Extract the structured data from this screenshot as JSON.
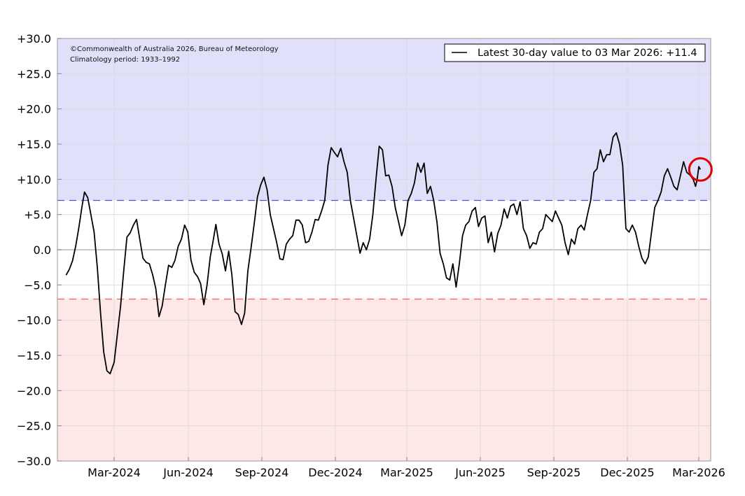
{
  "chart_data": {
    "type": "line",
    "title": "",
    "xlabel": "",
    "ylabel": "",
    "ylim": [
      -30,
      30
    ],
    "grid": true,
    "legend_position": "upper right",
    "annotations": [
      "©Commonwealth of Australia 2026, Bureau of Meteorology",
      "Climatology period: 1933–1992"
    ],
    "legend": [
      "Latest 30-day value to 03 Mar 2026: +11.4"
    ],
    "y_ticks": [
      "+30.0",
      "+25.0",
      "+20.0",
      "+15.0",
      "+10.0",
      "+5.0",
      "0.0",
      "−5.0",
      "−10.0",
      "−15.0",
      "−20.0",
      "−25.0",
      "−30.0"
    ],
    "x_ticks": [
      "Mar-2024",
      "Jun-2024",
      "Sep-2024",
      "Dec-2024",
      "Mar-2025",
      "Jun-2025",
      "Sep-2025",
      "Dec-2025",
      "Mar-2026"
    ],
    "thresholds": {
      "upper": 7.0,
      "lower": -7.0
    },
    "shading": {
      "above_upper": "#e0e0fb",
      "below_lower": "#fde7e7"
    },
    "highlight": {
      "label": "latest value marker",
      "value": 11.4,
      "color": "#e00000"
    },
    "series": [
      {
        "name": "30-day value",
        "color": "#000000",
        "points": [
          {
            "date": "2024-01-01",
            "value": -3.6
          },
          {
            "date": "2024-01-05",
            "value": -2.8
          },
          {
            "date": "2024-01-09",
            "value": -1.6
          },
          {
            "date": "2024-01-13",
            "value": 0.5
          },
          {
            "date": "2024-01-17",
            "value": 3.2
          },
          {
            "date": "2024-01-21",
            "value": 6.2
          },
          {
            "date": "2024-01-24",
            "value": 8.2
          },
          {
            "date": "2024-01-28",
            "value": 7.4
          },
          {
            "date": "2024-02-01",
            "value": 5.0
          },
          {
            "date": "2024-02-05",
            "value": 2.5
          },
          {
            "date": "2024-02-09",
            "value": -2.5
          },
          {
            "date": "2024-02-13",
            "value": -9.0
          },
          {
            "date": "2024-02-17",
            "value": -14.5
          },
          {
            "date": "2024-02-21",
            "value": -17.2
          },
          {
            "date": "2024-02-25",
            "value": -17.6
          },
          {
            "date": "2024-03-01",
            "value": -16.0
          },
          {
            "date": "2024-03-05",
            "value": -12.0
          },
          {
            "date": "2024-03-09",
            "value": -8.0
          },
          {
            "date": "2024-03-13",
            "value": -3.0
          },
          {
            "date": "2024-03-17",
            "value": 1.8
          },
          {
            "date": "2024-03-21",
            "value": 2.4
          },
          {
            "date": "2024-03-25",
            "value": 3.5
          },
          {
            "date": "2024-03-29",
            "value": 4.3
          },
          {
            "date": "2024-04-02",
            "value": 1.5
          },
          {
            "date": "2024-04-06",
            "value": -1.2
          },
          {
            "date": "2024-04-10",
            "value": -1.8
          },
          {
            "date": "2024-04-14",
            "value": -2.0
          },
          {
            "date": "2024-04-18",
            "value": -3.5
          },
          {
            "date": "2024-04-22",
            "value": -5.5
          },
          {
            "date": "2024-04-26",
            "value": -9.5
          },
          {
            "date": "2024-04-30",
            "value": -8.0
          },
          {
            "date": "2024-05-04",
            "value": -5.0
          },
          {
            "date": "2024-05-08",
            "value": -2.2
          },
          {
            "date": "2024-05-12",
            "value": -2.5
          },
          {
            "date": "2024-05-16",
            "value": -1.5
          },
          {
            "date": "2024-05-20",
            "value": 0.5
          },
          {
            "date": "2024-05-24",
            "value": 1.5
          },
          {
            "date": "2024-05-28",
            "value": 3.5
          },
          {
            "date": "2024-06-01",
            "value": 2.5
          },
          {
            "date": "2024-06-05",
            "value": -1.5
          },
          {
            "date": "2024-06-09",
            "value": -3.2
          },
          {
            "date": "2024-06-13",
            "value": -3.8
          },
          {
            "date": "2024-06-17",
            "value": -4.8
          },
          {
            "date": "2024-06-21",
            "value": -7.8
          },
          {
            "date": "2024-06-25",
            "value": -5.0
          },
          {
            "date": "2024-06-29",
            "value": -1.0
          },
          {
            "date": "2024-07-03",
            "value": 1.5
          },
          {
            "date": "2024-07-06",
            "value": 3.6
          },
          {
            "date": "2024-07-10",
            "value": 0.8
          },
          {
            "date": "2024-07-14",
            "value": -0.6
          },
          {
            "date": "2024-07-18",
            "value": -3.0
          },
          {
            "date": "2024-07-22",
            "value": -0.2
          },
          {
            "date": "2024-07-26",
            "value": -3.5
          },
          {
            "date": "2024-07-30",
            "value": -8.8
          },
          {
            "date": "2024-08-03",
            "value": -9.2
          },
          {
            "date": "2024-08-07",
            "value": -10.6
          },
          {
            "date": "2024-08-11",
            "value": -9.0
          },
          {
            "date": "2024-08-15",
            "value": -3.0
          },
          {
            "date": "2024-08-19",
            "value": 0.3
          },
          {
            "date": "2024-08-23",
            "value": 3.8
          },
          {
            "date": "2024-08-27",
            "value": 7.5
          },
          {
            "date": "2024-08-31",
            "value": 9.2
          },
          {
            "date": "2024-09-04",
            "value": 10.3
          },
          {
            "date": "2024-09-08",
            "value": 8.5
          },
          {
            "date": "2024-09-12",
            "value": 5.0
          },
          {
            "date": "2024-09-16",
            "value": 3.0
          },
          {
            "date": "2024-09-20",
            "value": 1.0
          },
          {
            "date": "2024-09-24",
            "value": -1.3
          },
          {
            "date": "2024-09-28",
            "value": -1.4
          },
          {
            "date": "2024-10-02",
            "value": 0.8
          },
          {
            "date": "2024-10-06",
            "value": 1.5
          },
          {
            "date": "2024-10-10",
            "value": 2.0
          },
          {
            "date": "2024-10-14",
            "value": 4.2
          },
          {
            "date": "2024-10-18",
            "value": 4.2
          },
          {
            "date": "2024-10-22",
            "value": 3.5
          },
          {
            "date": "2024-10-26",
            "value": 1.0
          },
          {
            "date": "2024-10-30",
            "value": 1.2
          },
          {
            "date": "2024-11-03",
            "value": 2.5
          },
          {
            "date": "2024-11-07",
            "value": 4.3
          },
          {
            "date": "2024-11-11",
            "value": 4.2
          },
          {
            "date": "2024-11-15",
            "value": 5.5
          },
          {
            "date": "2024-11-19",
            "value": 7.0
          },
          {
            "date": "2024-11-23",
            "value": 12.0
          },
          {
            "date": "2024-11-27",
            "value": 14.5
          },
          {
            "date": "2024-12-01",
            "value": 13.8
          },
          {
            "date": "2024-12-05",
            "value": 13.2
          },
          {
            "date": "2024-12-09",
            "value": 14.4
          },
          {
            "date": "2024-12-13",
            "value": 12.5
          },
          {
            "date": "2024-12-17",
            "value": 11.0
          },
          {
            "date": "2024-12-21",
            "value": 7.0
          },
          {
            "date": "2024-12-25",
            "value": 4.5
          },
          {
            "date": "2024-12-29",
            "value": 2.0
          },
          {
            "date": "2025-01-02",
            "value": -0.5
          },
          {
            "date": "2025-01-06",
            "value": 1.0
          },
          {
            "date": "2025-01-10",
            "value": 0.0
          },
          {
            "date": "2025-01-14",
            "value": 1.5
          },
          {
            "date": "2025-01-18",
            "value": 5.0
          },
          {
            "date": "2025-01-22",
            "value": 10.0
          },
          {
            "date": "2025-01-26",
            "value": 14.7
          },
          {
            "date": "2025-01-30",
            "value": 14.2
          },
          {
            "date": "2025-02-03",
            "value": 10.5
          },
          {
            "date": "2025-02-07",
            "value": 10.6
          },
          {
            "date": "2025-02-11",
            "value": 9.0
          },
          {
            "date": "2025-02-15",
            "value": 6.0
          },
          {
            "date": "2025-02-19",
            "value": 4.0
          },
          {
            "date": "2025-02-23",
            "value": 2.0
          },
          {
            "date": "2025-02-27",
            "value": 3.5
          },
          {
            "date": "2025-03-03",
            "value": 7.0
          },
          {
            "date": "2025-03-07",
            "value": 8.0
          },
          {
            "date": "2025-03-11",
            "value": 9.5
          },
          {
            "date": "2025-03-15",
            "value": 12.3
          },
          {
            "date": "2025-03-19",
            "value": 11.0
          },
          {
            "date": "2025-03-23",
            "value": 12.3
          },
          {
            "date": "2025-03-27",
            "value": 8.0
          },
          {
            "date": "2025-03-31",
            "value": 9.0
          },
          {
            "date": "2025-04-04",
            "value": 7.0
          },
          {
            "date": "2025-04-08",
            "value": 4.0
          },
          {
            "date": "2025-04-12",
            "value": -0.5
          },
          {
            "date": "2025-04-16",
            "value": -2.0
          },
          {
            "date": "2025-04-20",
            "value": -4.0
          },
          {
            "date": "2025-04-24",
            "value": -4.3
          },
          {
            "date": "2025-04-28",
            "value": -2.0
          },
          {
            "date": "2025-05-02",
            "value": -5.3
          },
          {
            "date": "2025-05-06",
            "value": -2.0
          },
          {
            "date": "2025-05-10",
            "value": 2.0
          },
          {
            "date": "2025-05-14",
            "value": 3.5
          },
          {
            "date": "2025-05-18",
            "value": 4.0
          },
          {
            "date": "2025-05-22",
            "value": 5.5
          },
          {
            "date": "2025-05-26",
            "value": 6.0
          },
          {
            "date": "2025-05-30",
            "value": 3.3
          },
          {
            "date": "2025-06-03",
            "value": 4.5
          },
          {
            "date": "2025-06-07",
            "value": 4.8
          },
          {
            "date": "2025-06-11",
            "value": 1.0
          },
          {
            "date": "2025-06-15",
            "value": 2.5
          },
          {
            "date": "2025-06-19",
            "value": -0.3
          },
          {
            "date": "2025-06-23",
            "value": 2.3
          },
          {
            "date": "2025-06-27",
            "value": 3.5
          },
          {
            "date": "2025-07-01",
            "value": 5.8
          },
          {
            "date": "2025-07-05",
            "value": 4.5
          },
          {
            "date": "2025-07-09",
            "value": 6.2
          },
          {
            "date": "2025-07-13",
            "value": 6.5
          },
          {
            "date": "2025-07-17",
            "value": 5.0
          },
          {
            "date": "2025-07-21",
            "value": 6.8
          },
          {
            "date": "2025-07-25",
            "value": 3.0
          },
          {
            "date": "2025-07-29",
            "value": 2.0
          },
          {
            "date": "2025-08-02",
            "value": 0.2
          },
          {
            "date": "2025-08-06",
            "value": 1.0
          },
          {
            "date": "2025-08-10",
            "value": 0.8
          },
          {
            "date": "2025-08-14",
            "value": 2.5
          },
          {
            "date": "2025-08-18",
            "value": 3.0
          },
          {
            "date": "2025-08-22",
            "value": 5.0
          },
          {
            "date": "2025-08-26",
            "value": 4.5
          },
          {
            "date": "2025-08-30",
            "value": 4.0
          },
          {
            "date": "2025-09-03",
            "value": 5.5
          },
          {
            "date": "2025-09-07",
            "value": 4.5
          },
          {
            "date": "2025-09-11",
            "value": 3.5
          },
          {
            "date": "2025-09-15",
            "value": 1.0
          },
          {
            "date": "2025-09-19",
            "value": -0.7
          },
          {
            "date": "2025-09-23",
            "value": 1.5
          },
          {
            "date": "2025-09-27",
            "value": 0.8
          },
          {
            "date": "2025-10-01",
            "value": 3.0
          },
          {
            "date": "2025-10-05",
            "value": 3.5
          },
          {
            "date": "2025-10-09",
            "value": 2.8
          },
          {
            "date": "2025-10-13",
            "value": 5.0
          },
          {
            "date": "2025-10-17",
            "value": 7.0
          },
          {
            "date": "2025-10-21",
            "value": 11.0
          },
          {
            "date": "2025-10-25",
            "value": 11.5
          },
          {
            "date": "2025-10-29",
            "value": 14.2
          },
          {
            "date": "2025-11-02",
            "value": 12.5
          },
          {
            "date": "2025-11-06",
            "value": 13.5
          },
          {
            "date": "2025-11-10",
            "value": 13.5
          },
          {
            "date": "2025-11-14",
            "value": 16.0
          },
          {
            "date": "2025-11-18",
            "value": 16.6
          },
          {
            "date": "2025-11-22",
            "value": 15.0
          },
          {
            "date": "2025-11-26",
            "value": 12.0
          },
          {
            "date": "2025-11-30",
            "value": 3.0
          },
          {
            "date": "2025-12-04",
            "value": 2.5
          },
          {
            "date": "2025-12-08",
            "value": 3.5
          },
          {
            "date": "2025-12-12",
            "value": 2.5
          },
          {
            "date": "2025-12-16",
            "value": 0.5
          },
          {
            "date": "2025-12-20",
            "value": -1.2
          },
          {
            "date": "2025-12-24",
            "value": -2.0
          },
          {
            "date": "2025-12-28",
            "value": -1.0
          },
          {
            "date": "2026-01-01",
            "value": 2.5
          },
          {
            "date": "2026-01-05",
            "value": 6.0
          },
          {
            "date": "2026-01-09",
            "value": 7.0
          },
          {
            "date": "2026-01-13",
            "value": 8.2
          },
          {
            "date": "2026-01-17",
            "value": 10.5
          },
          {
            "date": "2026-01-21",
            "value": 11.5
          },
          {
            "date": "2026-01-25",
            "value": 10.3
          },
          {
            "date": "2026-01-29",
            "value": 9.0
          },
          {
            "date": "2026-02-02",
            "value": 8.5
          },
          {
            "date": "2026-02-06",
            "value": 10.5
          },
          {
            "date": "2026-02-10",
            "value": 12.5
          },
          {
            "date": "2026-02-14",
            "value": 11.0
          },
          {
            "date": "2026-02-18",
            "value": 10.6
          },
          {
            "date": "2026-02-22",
            "value": 10.0
          },
          {
            "date": "2026-02-25",
            "value": 9.0
          },
          {
            "date": "2026-02-27",
            "value": 10.0
          },
          {
            "date": "2026-03-01",
            "value": 11.8
          },
          {
            "date": "2026-03-03",
            "value": 11.4
          }
        ]
      }
    ]
  }
}
